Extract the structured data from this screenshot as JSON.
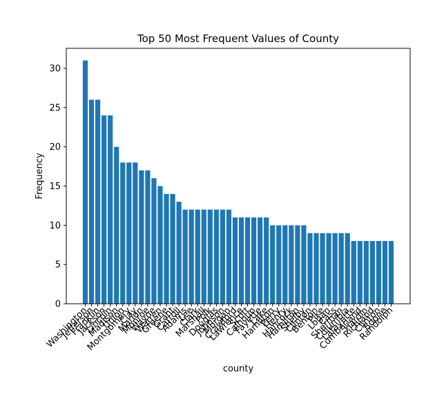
{
  "chart_data": {
    "type": "bar",
    "title": "Top 50 Most Frequent Values of County",
    "xlabel": "county",
    "ylabel": "Frequency",
    "ylim": [
      0,
      32.55
    ],
    "yticks": [
      0,
      5,
      10,
      15,
      20,
      25,
      30
    ],
    "grid": false,
    "bar_color": "#1f77b4",
    "categories": [
      "Washington",
      "Jefferson",
      "Franklin",
      "Jackson",
      "Lincoln",
      "Madison",
      "Union",
      "Montgomery",
      "Clay",
      "Marion",
      "Monroe",
      "Wayne",
      "Warren",
      "Greene",
      "Grant",
      "Carroll",
      "Adams",
      "Lee",
      "Clark",
      "Marshall",
      "Polk",
      "Douglas",
      "Johnson",
      "Morgan",
      "Crawford",
      "Lawrence",
      "Scott",
      "Calhoun",
      "Fayette",
      "Lake",
      "Hamilton",
      "Perry",
      "Henry",
      "Hancock",
      "Hamilton",
      "Shelby",
      "Clinton",
      "Benton",
      "Pike",
      "Logan",
      "Cass",
      "Sherman",
      "Columbia",
      "Lafayette",
      "Cumberland",
      "Hardin",
      "Richland",
      "Clinton",
      "Boone",
      "Randolph"
    ],
    "values": [
      31,
      26,
      26,
      24,
      24,
      20,
      18,
      18,
      18,
      17,
      17,
      16,
      15,
      14,
      14,
      13,
      12,
      12,
      12,
      12,
      12,
      12,
      12,
      12,
      11,
      11,
      11,
      11,
      11,
      11,
      10,
      10,
      10,
      10,
      10,
      10,
      9,
      9,
      9,
      9,
      9,
      9,
      9,
      8,
      8,
      8,
      8,
      8,
      8,
      8
    ]
  }
}
